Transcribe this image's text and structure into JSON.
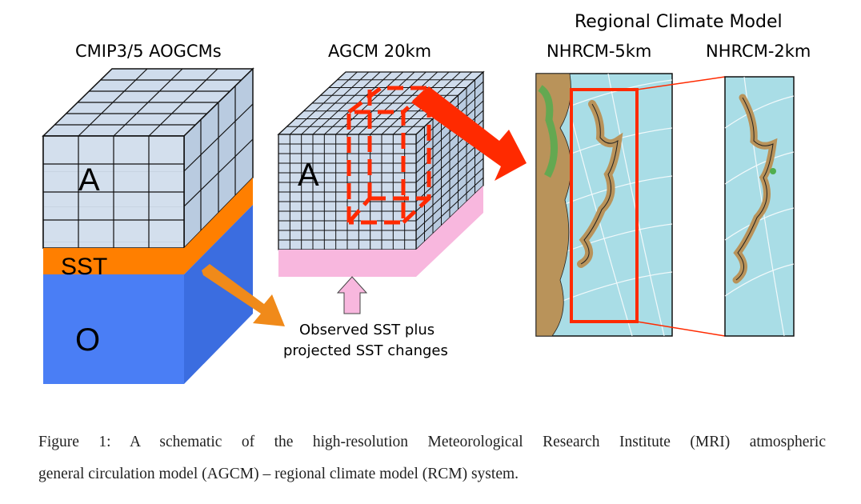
{
  "labels": {
    "cmip_title": "CMIP3/5 AOGCMs",
    "agcm_title": "AGCM 20km",
    "rcm_title": "Regional Climate Model",
    "nhrcm5_title": "NHRCM-5km",
    "nhrcm2_title": "NHRCM-2km",
    "cube_atmosphere": "A",
    "cube_sst": "SST",
    "cube_ocean": "O",
    "agcm_atmosphere": "A",
    "observed_line1": "Observed SST plus",
    "observed_line2": "projected SST changes"
  },
  "caption": {
    "line1": "Figure 1: A schematic of the high-resolution Meteorological Research Institute (MRI) atmospheric",
    "line2": "general circulation model (AGCM) – regional climate model (RCM) system."
  },
  "colors": {
    "atmosphere_face": "#cfdcec",
    "atmosphere_side": "#b9cbe0",
    "sst_orange": "#ff7f00",
    "ocean_blue": "#4a7ef5",
    "ocean_side": "#3b6de0",
    "agcm_pink": "#f8b7de",
    "highlight_red": "#ff2a00",
    "map_sea": "#a9dde6",
    "arrow_orange": "#f08a1a"
  }
}
